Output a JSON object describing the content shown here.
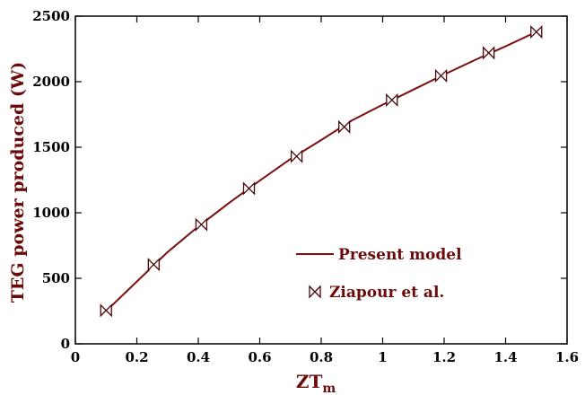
{
  "chart_data": {
    "type": "line",
    "title": "",
    "xlabel_main": "ZT",
    "xlabel_sub": "m",
    "ylabel": "TEG power produced (W)",
    "xlim": [
      0,
      1.6
    ],
    "ylim": [
      0,
      2500
    ],
    "x_ticks": [
      "0",
      "0.2",
      "0.4",
      "0.6",
      "0.8",
      "1",
      "1.2",
      "1.4",
      "1.6"
    ],
    "y_ticks": [
      "0",
      "500",
      "1000",
      "1500",
      "2000",
      "2500"
    ],
    "grid": false,
    "legend_position": "lower-right",
    "colors": {
      "series": "#7a1010",
      "axis_text": "#6b0a0a",
      "frame": "#000000"
    },
    "series": [
      {
        "name": "Present model",
        "style": "line",
        "x": [
          0.1,
          0.2,
          0.3,
          0.4,
          0.5,
          0.6,
          0.7,
          0.8,
          0.9,
          1.0,
          1.1,
          1.2,
          1.3,
          1.4,
          1.5
        ],
        "y": [
          250,
          475,
          700,
          895,
          1075,
          1245,
          1410,
          1555,
          1705,
          1825,
          1940,
          2055,
          2165,
          2270,
          2380
        ]
      },
      {
        "name": "Ziapour et al.",
        "style": "marker",
        "marker": "bowtie",
        "x": [
          0.1,
          0.255,
          0.41,
          0.565,
          0.72,
          0.875,
          1.03,
          1.19,
          1.345,
          1.5
        ],
        "y": [
          255,
          605,
          910,
          1185,
          1430,
          1655,
          1860,
          2045,
          2220,
          2380
        ]
      }
    ]
  }
}
